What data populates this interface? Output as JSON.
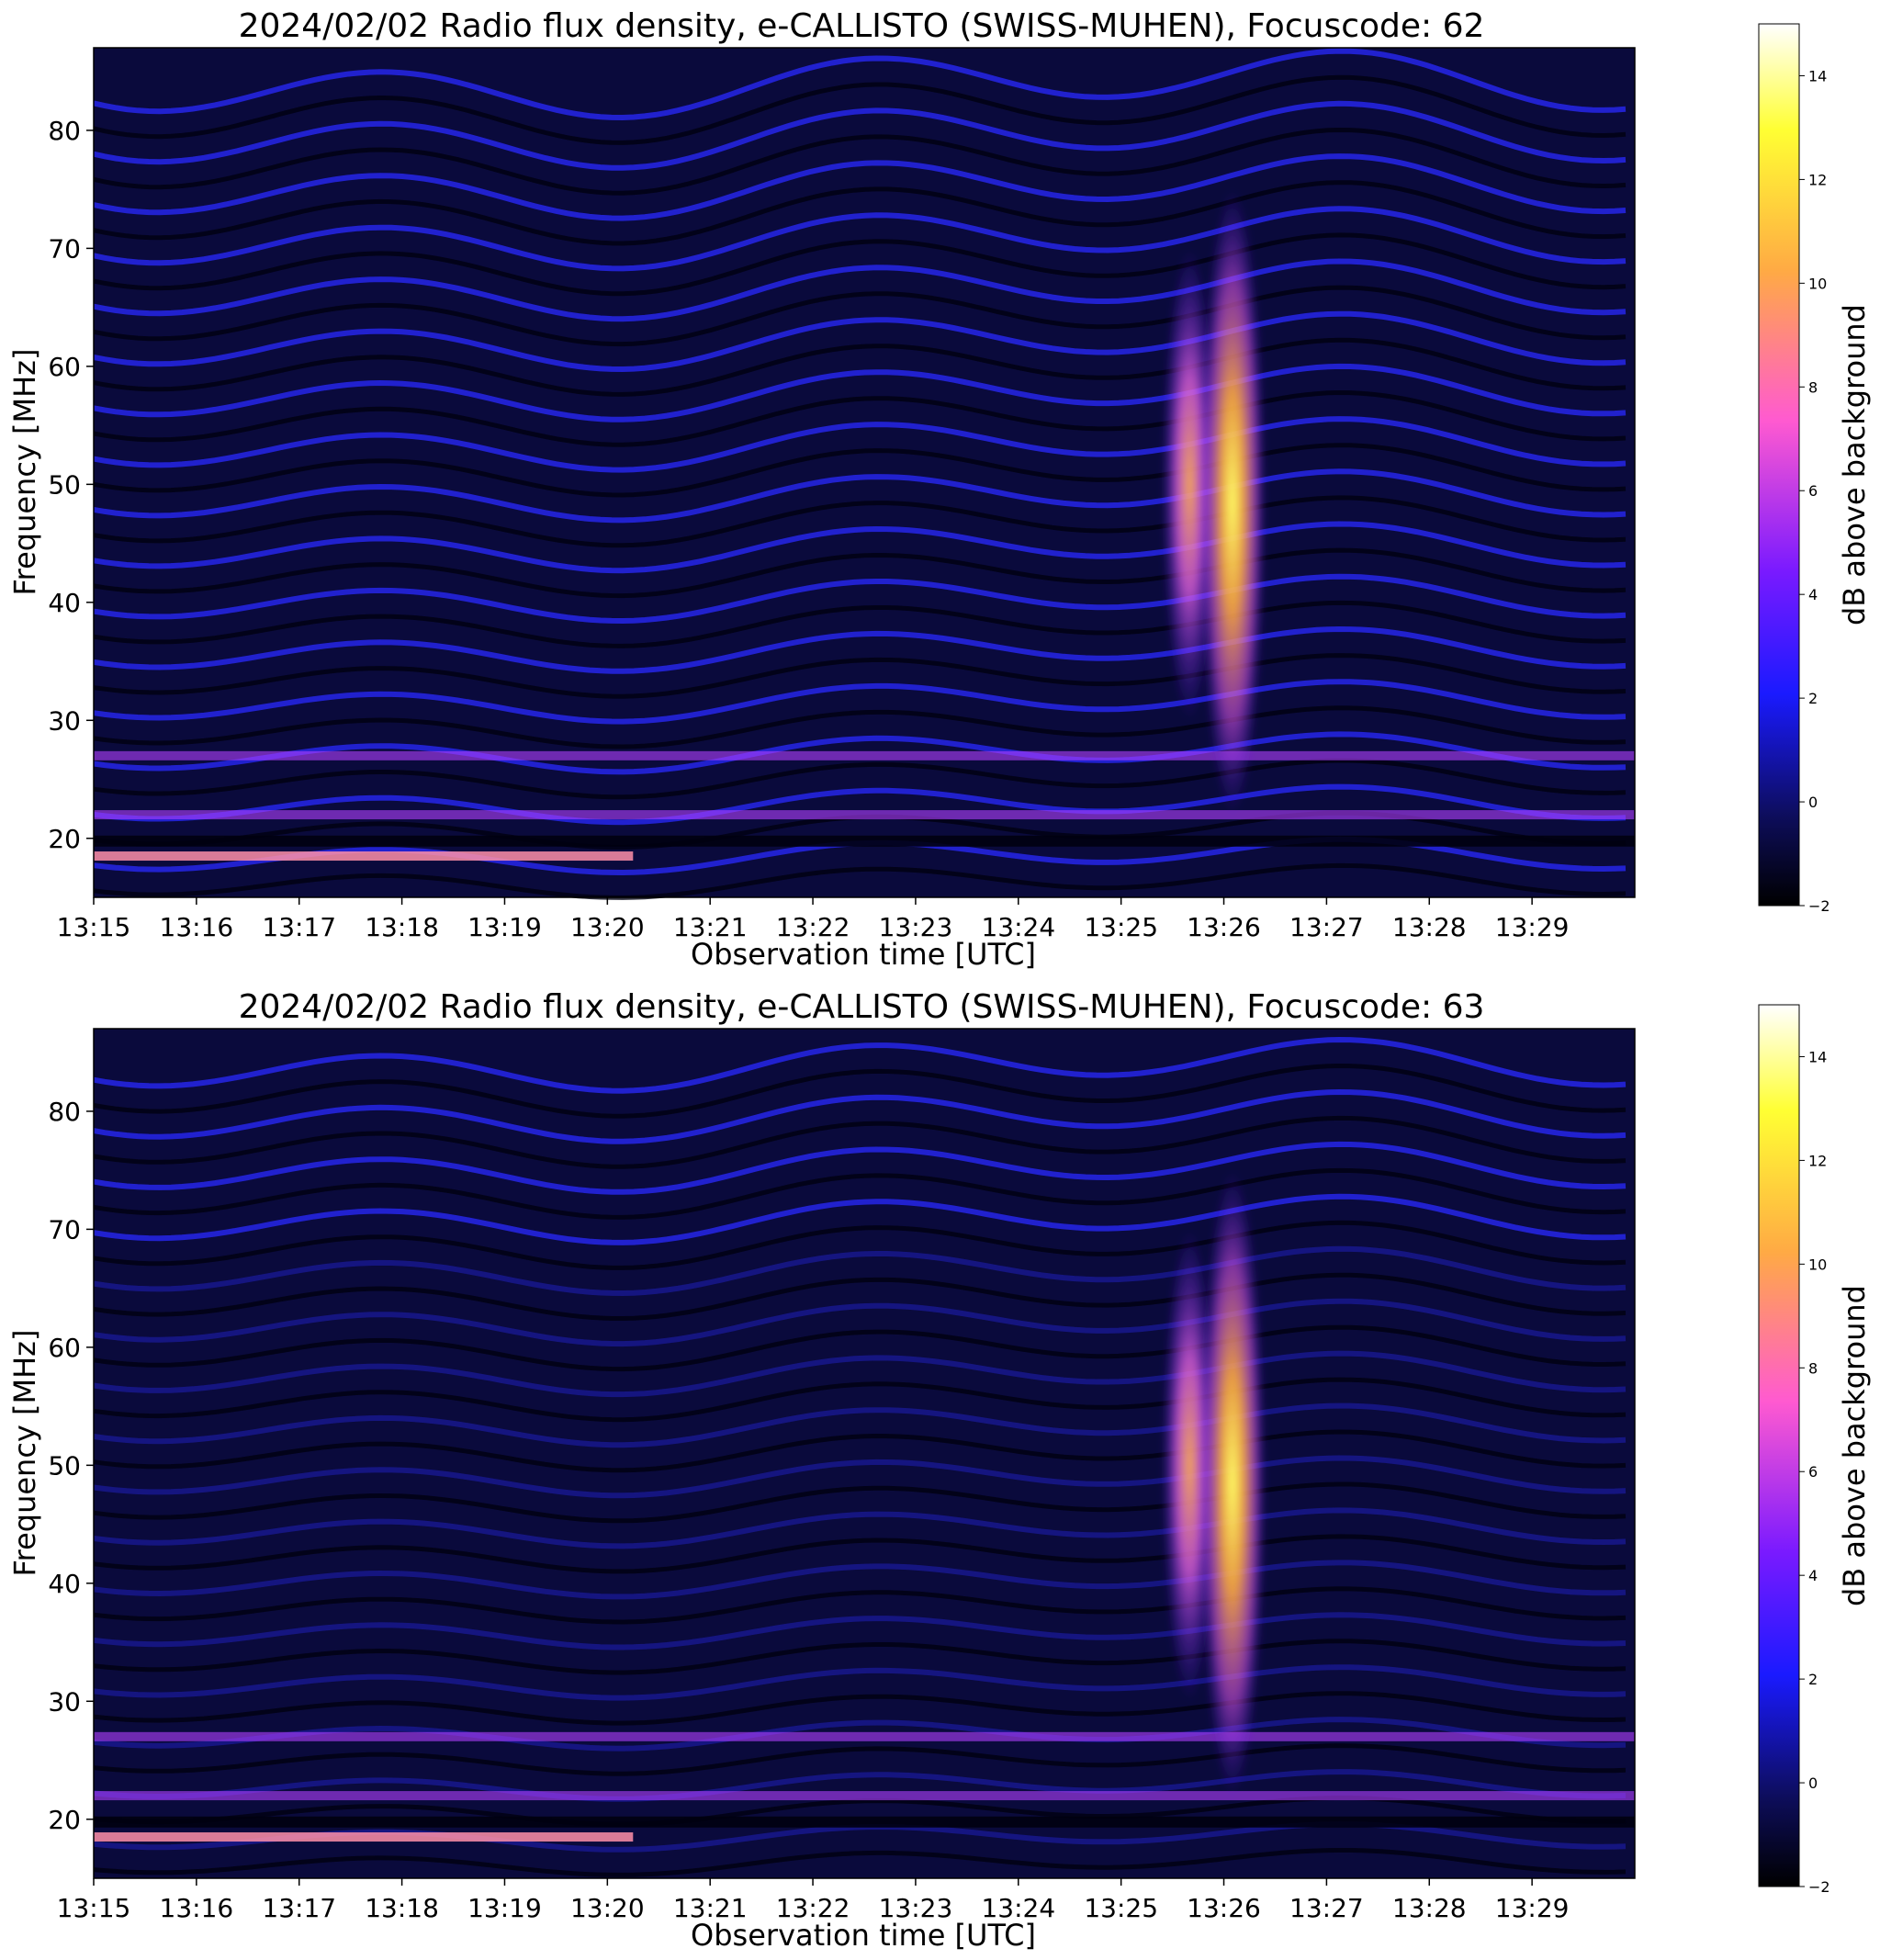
{
  "chart_data": [
    {
      "type": "heatmap",
      "title": "2024/02/02  Radio flux density, e-CALLISTO (SWISS-MUHEN), Focuscode: 62",
      "xlabel": "Observation time [UTC]",
      "ylabel": "Frequency [MHz]",
      "x_ticks": [
        "13:15",
        "13:16",
        "13:17",
        "13:18",
        "13:19",
        "13:20",
        "13:21",
        "13:22",
        "13:23",
        "13:24",
        "13:25",
        "13:26",
        "13:27",
        "13:28",
        "13:29"
      ],
      "xlim": [
        "13:15:00",
        "13:30:00"
      ],
      "y_ticks": [
        20,
        30,
        40,
        50,
        60,
        70,
        80
      ],
      "ylim": [
        15,
        87
      ],
      "colorbar": {
        "label": "dB above background",
        "ticks": [
          -2,
          0,
          2,
          4,
          6,
          8,
          10,
          12,
          14
        ],
        "range": [
          -2,
          15
        ],
        "colormap": [
          "#000000",
          "#0d0d5a",
          "#1a1aff",
          "#7a1aff",
          "#ff5ad0",
          "#ffaa44",
          "#ffff33",
          "#ffffff"
        ]
      },
      "features": {
        "bursts": [
          {
            "time": "13:25:40",
            "freq_range": [
              30,
              70
            ],
            "peak_db": 11
          },
          {
            "time": "13:26:05",
            "freq_range": [
              22,
              75
            ],
            "peak_db": 14
          }
        ],
        "interference_bands_mhz": [
          18.5,
          22,
          27
        ]
      }
    },
    {
      "type": "heatmap",
      "title": "2024/02/02  Radio flux density, e-CALLISTO (SWISS-MUHEN), Focuscode: 63",
      "xlabel": "Observation time [UTC]",
      "ylabel": "Frequency [MHz]",
      "x_ticks": [
        "13:15",
        "13:16",
        "13:17",
        "13:18",
        "13:19",
        "13:20",
        "13:21",
        "13:22",
        "13:23",
        "13:24",
        "13:25",
        "13:26",
        "13:27",
        "13:28",
        "13:29"
      ],
      "xlim": [
        "13:15:00",
        "13:30:00"
      ],
      "y_ticks": [
        20,
        30,
        40,
        50,
        60,
        70,
        80
      ],
      "ylim": [
        15,
        87
      ],
      "colorbar": {
        "label": "dB above background",
        "ticks": [
          -2,
          0,
          2,
          4,
          6,
          8,
          10,
          12,
          14
        ],
        "range": [
          -2,
          15
        ],
        "colormap": [
          "#000000",
          "#0d0d5a",
          "#1a1aff",
          "#7a1aff",
          "#ff5ad0",
          "#ffaa44",
          "#ffff33",
          "#ffffff"
        ]
      },
      "features": {
        "bursts": [
          {
            "time": "13:25:40",
            "freq_range": [
              30,
              70
            ],
            "peak_db": 12
          },
          {
            "time": "13:26:05",
            "freq_range": [
              22,
              75
            ],
            "peak_db": 13
          }
        ],
        "interference_bands_mhz": [
          18.5,
          22,
          27
        ]
      }
    }
  ]
}
